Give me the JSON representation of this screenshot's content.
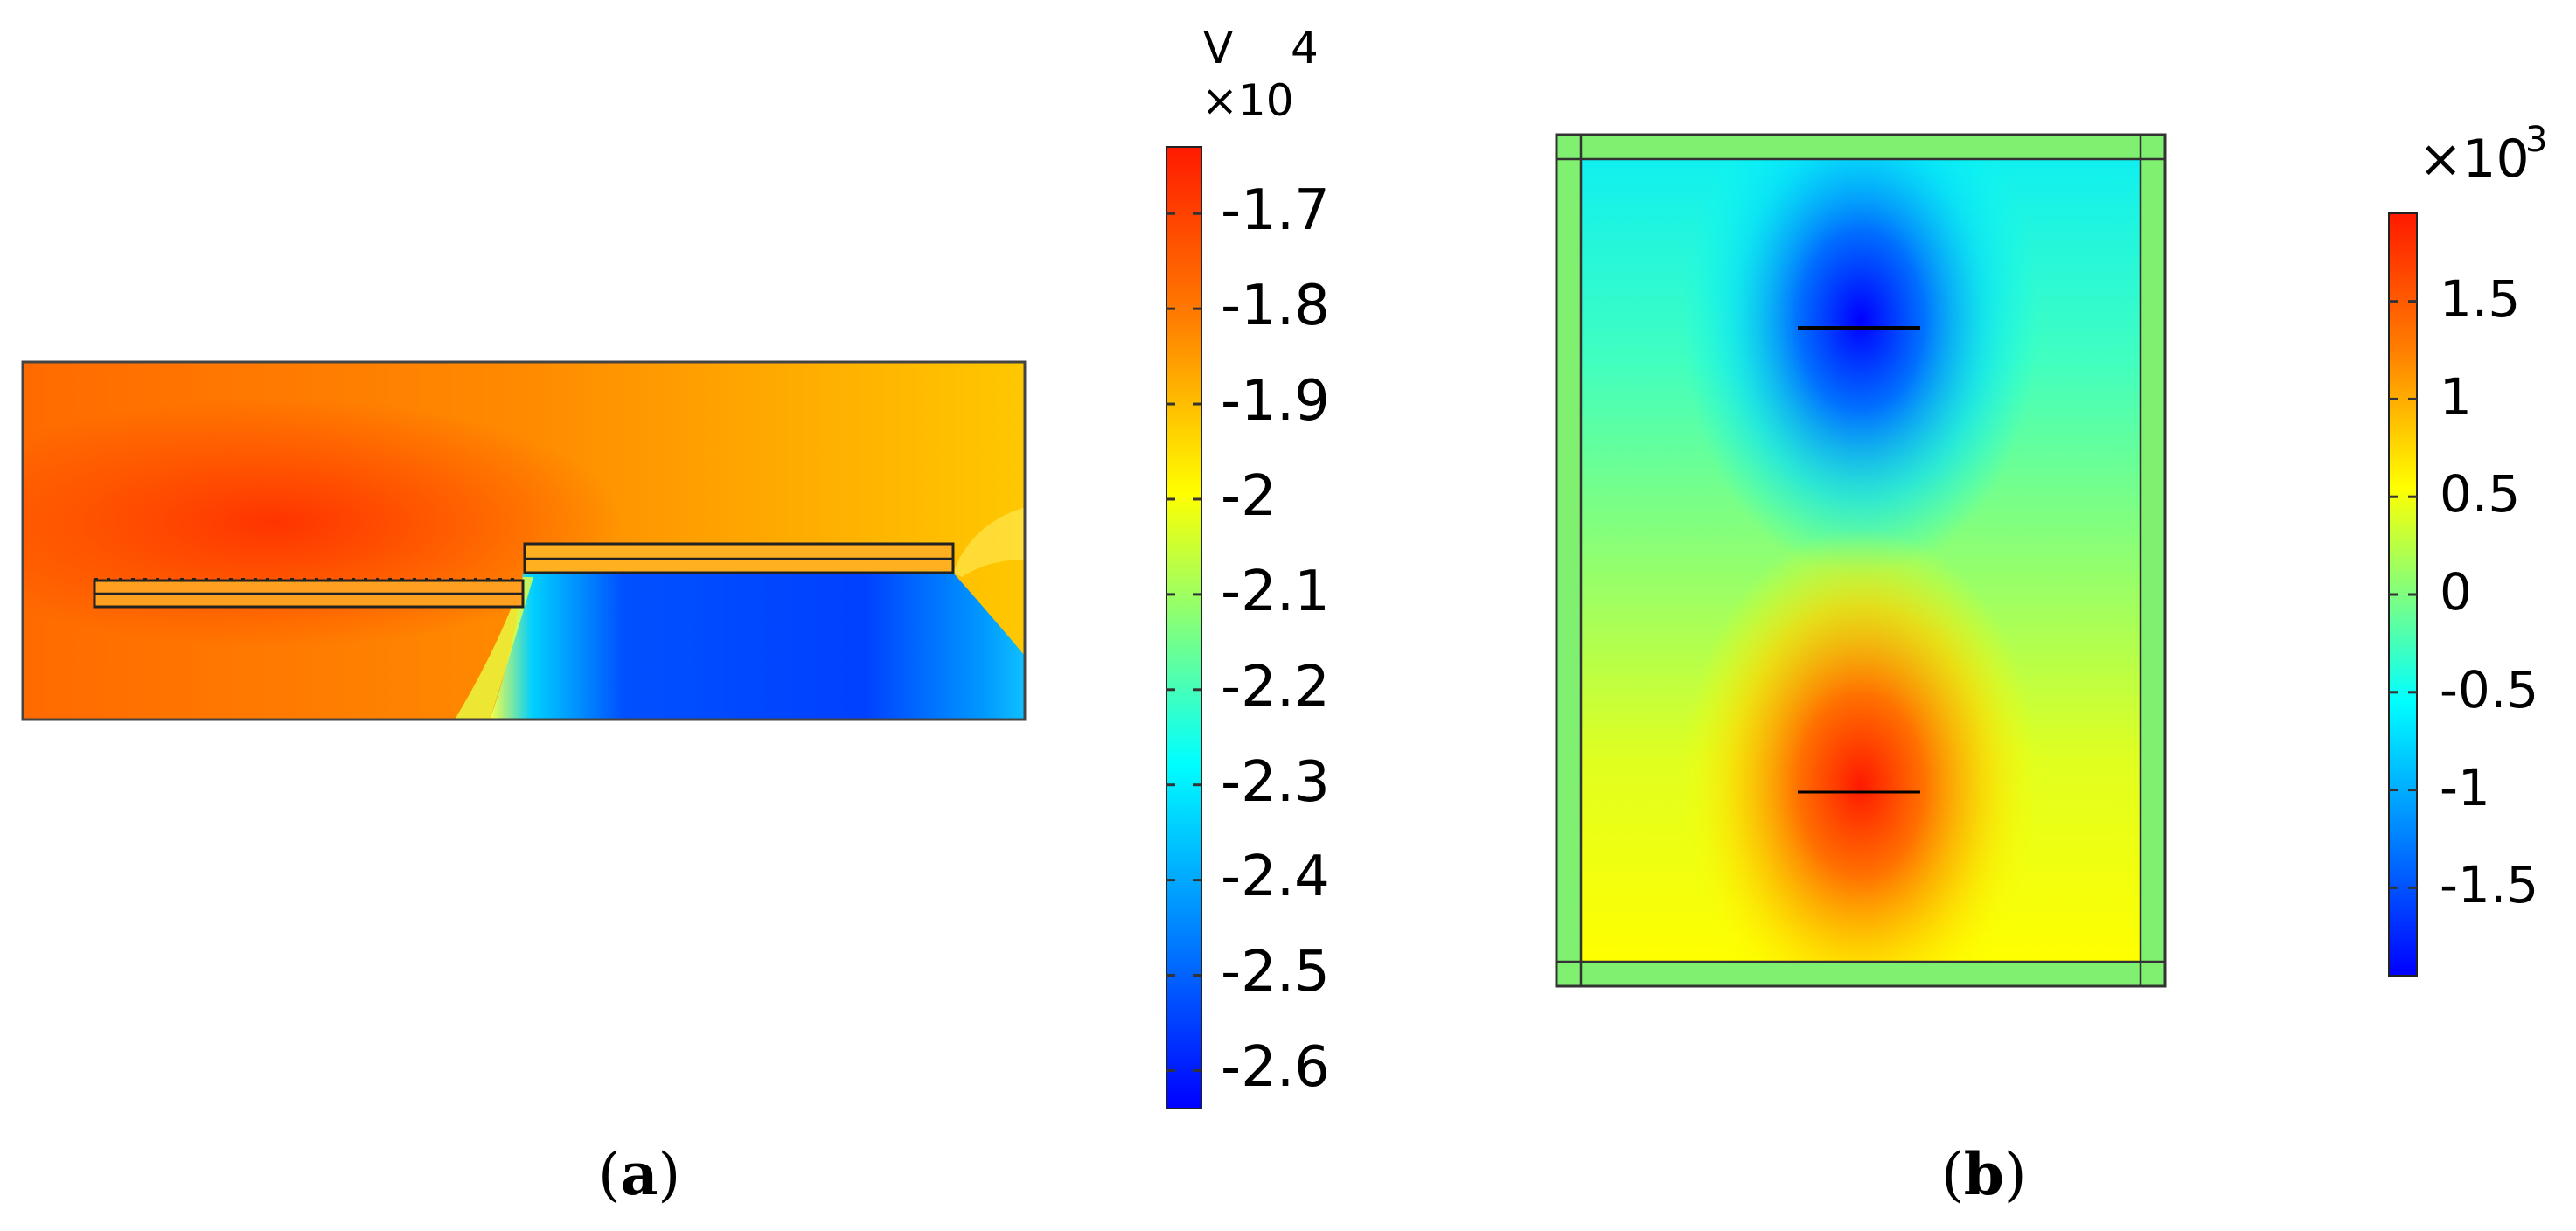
{
  "panel_a": {
    "colorbar": {
      "unit": "V",
      "exponent_base": "×10",
      "exponent": "4",
      "ticks": [
        "-1.7",
        "-1.8",
        "-1.9",
        "-2",
        "-2.1",
        "-2.2",
        "-2.3",
        "-2.4",
        "-2.5",
        "-2.6"
      ],
      "range": [
        -1.63,
        -2.64
      ]
    },
    "caption_open": "(",
    "caption_letter": "a",
    "caption_close": ")"
  },
  "panel_b": {
    "colorbar": {
      "exponent_base": "×10",
      "exponent": "3",
      "ticks": [
        "1.5",
        "1",
        "0.5",
        "0",
        "-0.5",
        "-1",
        "-1.5"
      ],
      "range": [
        1.95,
        -1.95
      ]
    },
    "caption_open": "(",
    "caption_letter": "b",
    "caption_close": ")"
  },
  "colors": {
    "jet_red": "#ff2000",
    "jet_orange": "#ff8c00",
    "jet_yellow": "#ffff00",
    "jet_green": "#7fff7f",
    "jet_cyan": "#00ffff",
    "jet_blue": "#0000ff"
  }
}
